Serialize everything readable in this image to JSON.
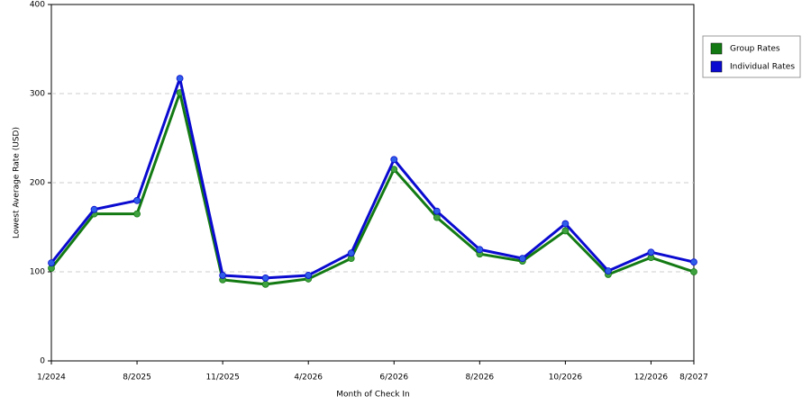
{
  "chart_data": {
    "type": "line",
    "x_label": "Month of Check In",
    "y_label": "Lowest Average Rate (USD)",
    "categories": [
      "1/2024",
      null,
      "8/2025",
      null,
      "11/2025",
      null,
      "4/2026",
      null,
      "6/2026",
      null,
      "8/2026",
      null,
      "10/2026",
      null,
      "12/2026",
      "8/2027"
    ],
    "series": [
      {
        "name": "Group Rates",
        "color": "#137a13",
        "marker_color": "#3fa23f",
        "values": [
          104,
          165,
          165,
          301,
          91,
          86,
          92,
          115,
          215,
          161,
          120,
          112,
          146,
          97,
          116,
          100
        ]
      },
      {
        "name": "Individual Rates",
        "color": "#0a0ad0",
        "marker_color": "#2f5fe8",
        "values": [
          110,
          170,
          180,
          317,
          96,
          93,
          96,
          121,
          226,
          168,
          125,
          115,
          154,
          101,
          122,
          111
        ]
      }
    ],
    "ylim": [
      0,
      400
    ],
    "yticks": [
      0,
      100,
      200,
      300,
      400
    ],
    "grid": true,
    "legend": "right"
  }
}
